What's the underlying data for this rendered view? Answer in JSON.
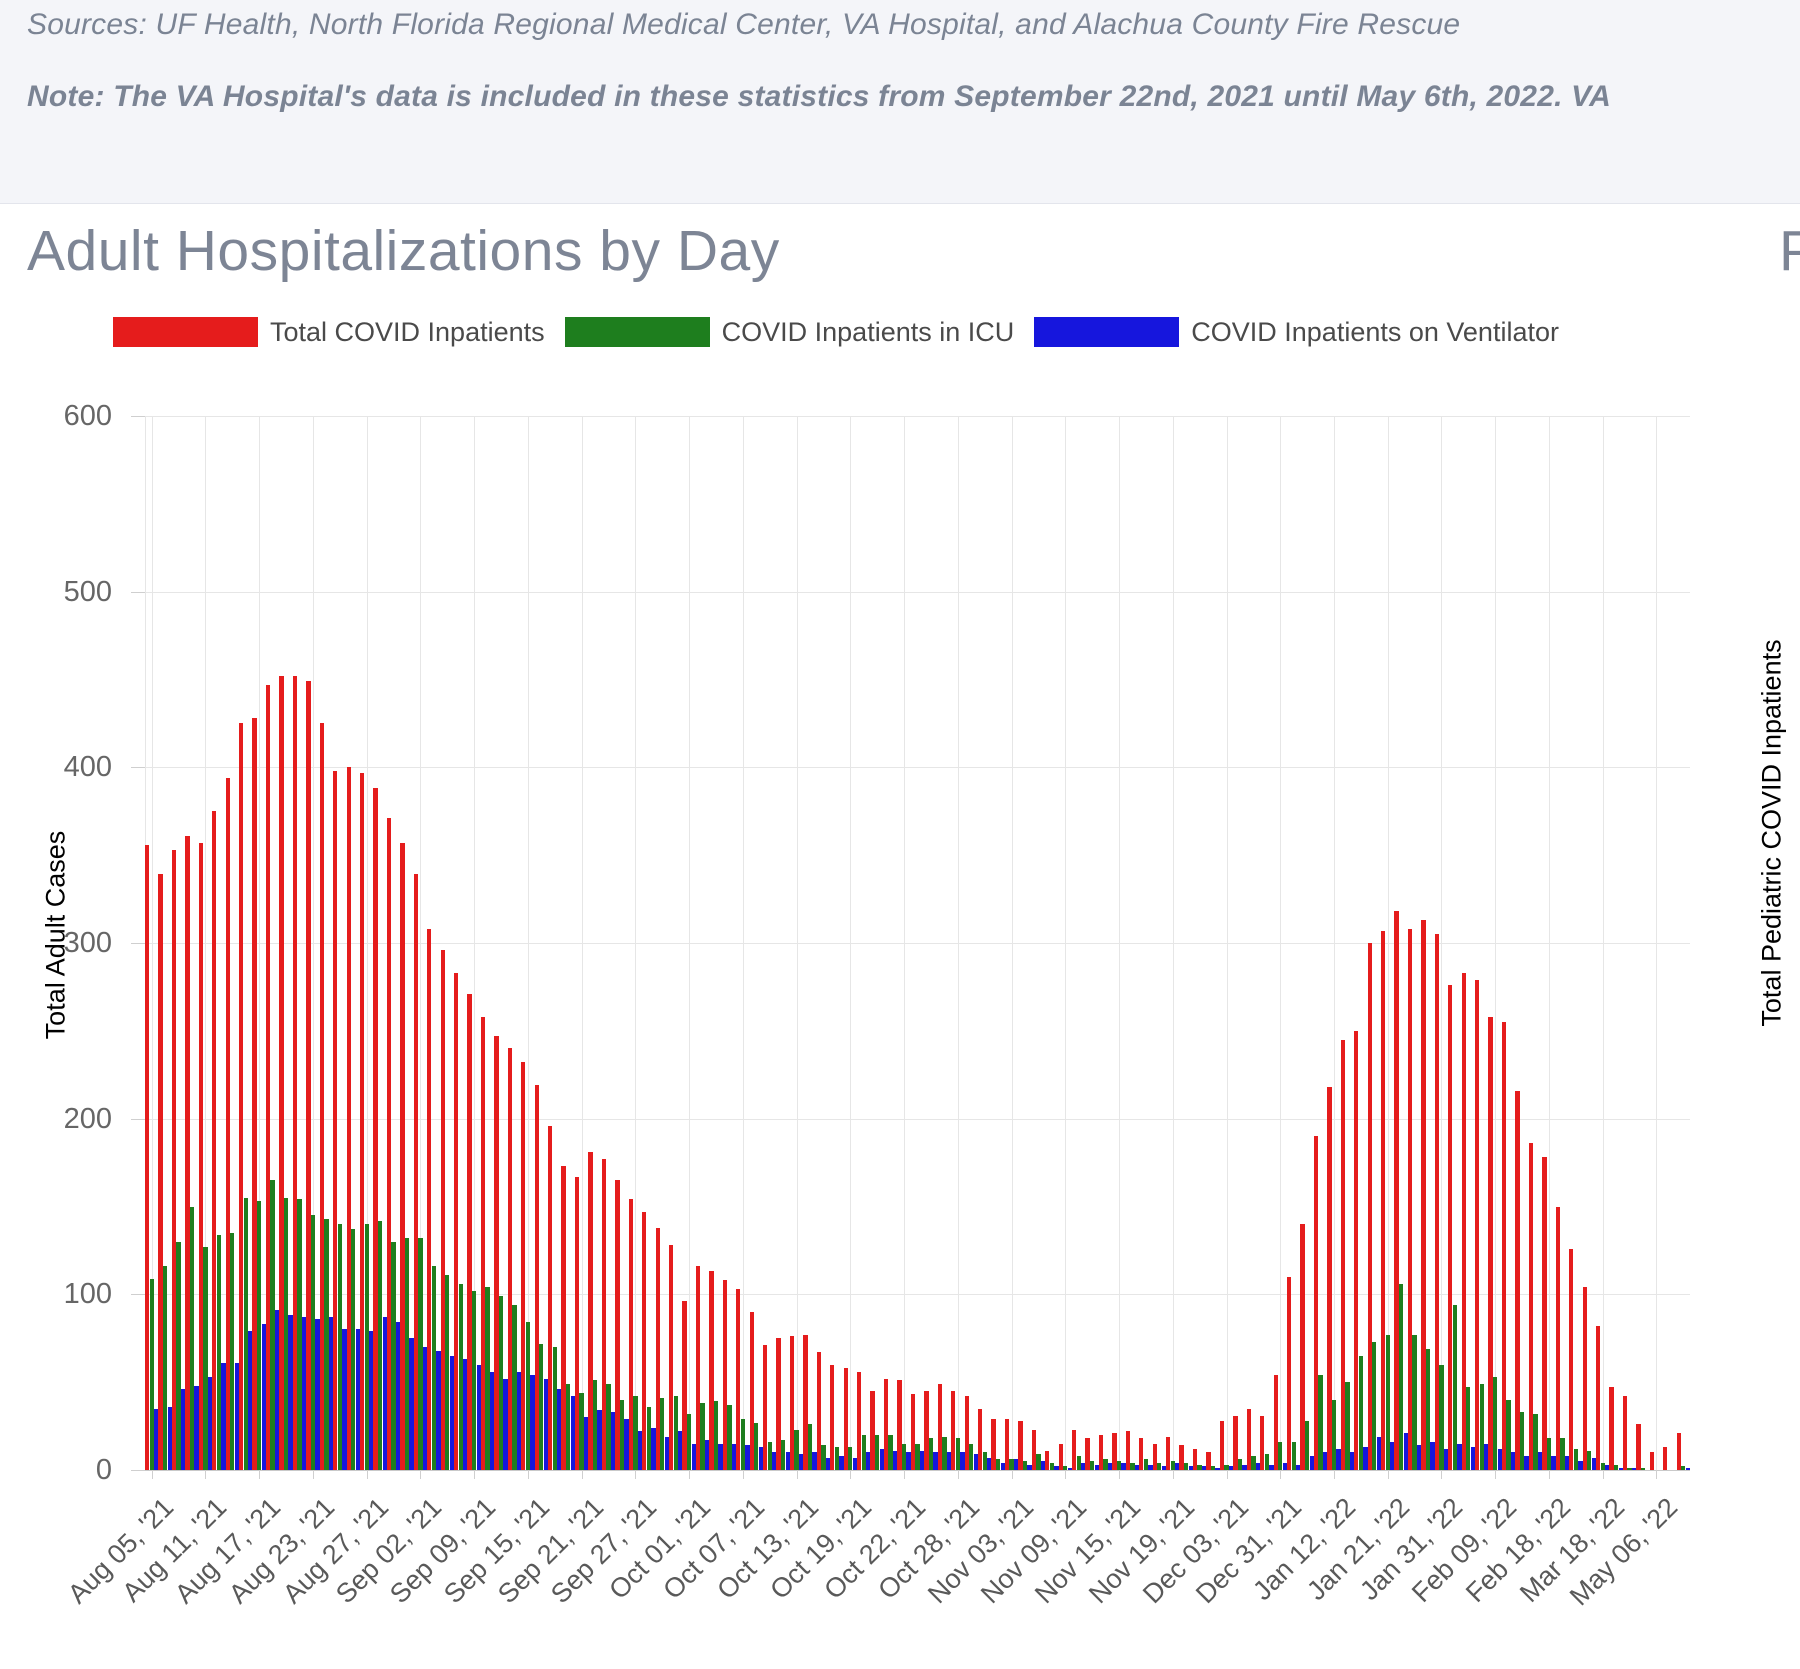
{
  "header": {
    "sources_line": "Sources: UF Health, North Florida Regional Medical Center, VA Hospital, and Alachua County Fire Rescue",
    "note_line": "Note: The VA Hospital's data is included in these statistics from September 22nd, 2021 until May 6th, 2022. VA"
  },
  "section": {
    "title": "Adult Hospitalizations by Day",
    "next_section_title_partial": "P"
  },
  "right_chart": {
    "ylabel": "Total Pediatric COVID Inpatients"
  },
  "colors": {
    "header_bg": "#f4f5f9",
    "title_text": "#7d8595",
    "red": "#e51c1c",
    "green": "#1e7e1e",
    "blue": "#1616dd"
  },
  "chart_data": {
    "type": "bar",
    "title": "Adult Hospitalizations by Day",
    "xlabel": "",
    "ylabel": "Total Adult Cases",
    "ylim": [
      0,
      600
    ],
    "ytick_interval": 100,
    "grid": true,
    "legend_position": "top",
    "tick_every": 4,
    "x_tick_labels": [
      "Aug 05, '21",
      "Aug 11, '21",
      "Aug 17, '21",
      "Aug 23, '21",
      "Aug 27, '21",
      "Sep 02, '21",
      "Sep 09, '21",
      "Sep 15, '21",
      "Sep 21, '21",
      "Sep 27, '21",
      "Oct 01, '21",
      "Oct 07, '21",
      "Oct 13, '21",
      "Oct 19, '21",
      "Oct 22, '21",
      "Oct 28, '21",
      "Nov 03, '21",
      "Nov 09, '21",
      "Nov 15, '21",
      "Nov 19, '21",
      "Dec 03, '21",
      "Dec 31, '21",
      "Jan 12, '22",
      "Jan 21, '22",
      "Jan 31, '22",
      "Feb 09, '22",
      "Feb 18, '22",
      "Mar 18, '22",
      "May 06, '22"
    ],
    "series": [
      {
        "name": "Total COVID Inpatients",
        "color": "#e51c1c",
        "values": [
          356,
          339,
          353,
          361,
          357,
          375,
          394,
          425,
          428,
          447,
          452,
          452,
          449,
          425,
          398,
          400,
          397,
          388,
          371,
          357,
          339,
          308,
          296,
          283,
          271,
          258,
          247,
          240,
          232,
          219,
          196,
          173,
          167,
          181,
          177,
          165,
          154,
          147,
          138,
          128,
          96,
          116,
          113,
          108,
          103,
          90,
          71,
          75,
          76,
          77,
          67,
          60,
          58,
          56,
          45,
          52,
          51,
          43,
          45,
          49,
          45,
          42,
          35,
          29,
          29,
          28,
          23,
          11,
          15,
          23,
          18,
          20,
          21,
          22,
          18,
          15,
          19,
          14,
          12,
          10,
          28,
          31,
          35,
          31,
          54,
          110,
          140,
          190,
          218,
          245,
          250,
          300,
          307,
          318,
          308,
          313,
          305,
          276,
          283,
          279,
          258,
          255,
          216,
          186,
          178,
          150,
          126,
          104,
          82,
          47,
          42,
          26,
          10,
          13,
          21
        ]
      },
      {
        "name": "COVID Inpatients in ICU",
        "color": "#1e7e1e",
        "values": [
          109,
          116,
          130,
          150,
          127,
          134,
          135,
          155,
          153,
          165,
          155,
          154,
          145,
          143,
          140,
          137,
          140,
          142,
          130,
          132,
          132,
          116,
          111,
          106,
          102,
          104,
          99,
          94,
          84,
          72,
          70,
          49,
          44,
          51,
          49,
          40,
          42,
          36,
          41,
          42,
          32,
          38,
          39,
          37,
          29,
          27,
          16,
          17,
          23,
          26,
          14,
          13,
          13,
          20,
          20,
          20,
          15,
          15,
          18,
          19,
          18,
          15,
          10,
          6,
          6,
          5,
          9,
          4,
          2,
          8,
          5,
          6,
          5,
          4,
          6,
          4,
          5,
          4,
          3,
          2,
          3,
          6,
          8,
          9,
          16,
          16,
          28,
          54,
          40,
          50,
          65,
          73,
          77,
          106,
          77,
          69,
          60,
          94,
          47,
          49,
          53,
          40,
          33,
          32,
          18,
          18,
          12,
          11,
          4,
          3,
          1,
          1,
          0,
          0,
          2
        ]
      },
      {
        "name": "COVID Inpatients on Ventilator",
        "color": "#1616dd",
        "values": [
          35,
          36,
          46,
          48,
          53,
          61,
          61,
          79,
          83,
          91,
          88,
          87,
          86,
          87,
          80,
          80,
          79,
          87,
          84,
          75,
          70,
          68,
          65,
          63,
          60,
          56,
          52,
          56,
          54,
          52,
          46,
          42,
          30,
          34,
          33,
          29,
          22,
          24,
          19,
          22,
          15,
          17,
          15,
          15,
          14,
          13,
          10,
          10,
          9,
          10,
          7,
          8,
          7,
          10,
          12,
          11,
          10,
          11,
          10,
          10,
          10,
          9,
          7,
          4,
          6,
          3,
          5,
          2,
          1,
          4,
          3,
          4,
          4,
          3,
          3,
          2,
          4,
          2,
          2,
          1,
          2,
          3,
          4,
          3,
          4,
          3,
          8,
          10,
          12,
          10,
          13,
          19,
          16,
          21,
          14,
          16,
          12,
          15,
          13,
          15,
          12,
          10,
          8,
          10,
          8,
          8,
          5,
          7,
          3,
          1,
          1,
          0,
          0,
          0,
          1
        ]
      }
    ]
  }
}
